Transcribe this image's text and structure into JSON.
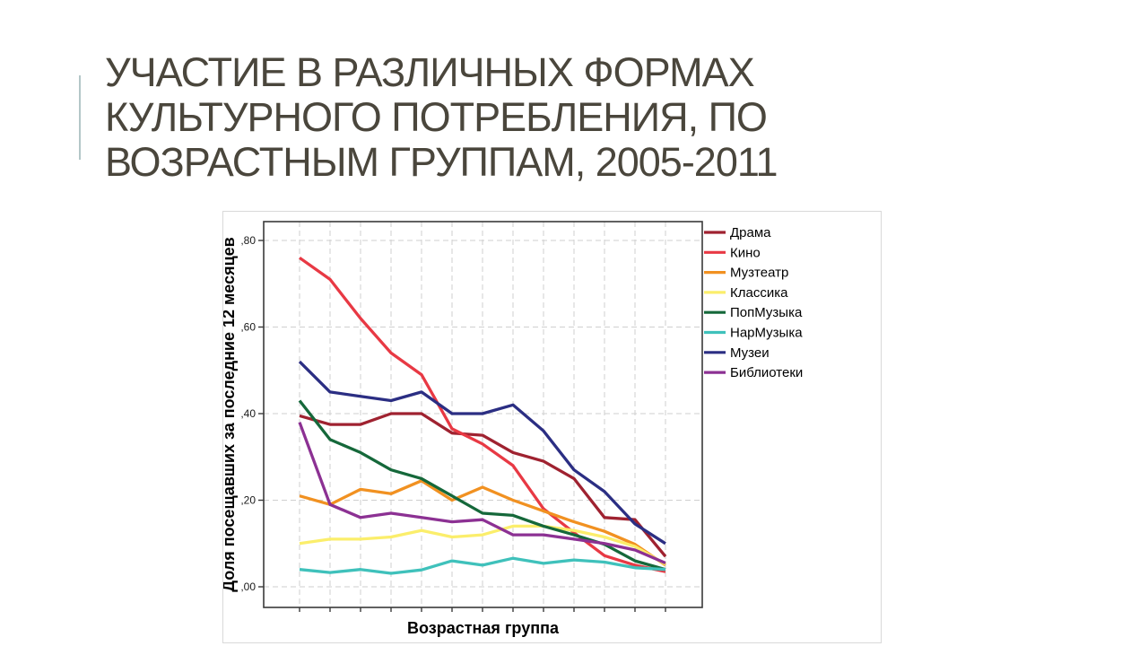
{
  "slide": {
    "title_lines": [
      "УЧАСТИЕ В РАЗЛИЧНЫХ ФОРМАХ",
      "КУЛЬТУРНОГО ПОТРЕБЛЕНИЯ, ПО",
      "ВОЗРАСТНЫМ ГРУППАМ, 2005-2011"
    ],
    "title_color": "#4a463c",
    "accent_color": "#b3c7c8",
    "background_color": "#ffffff"
  },
  "chart_data": {
    "type": "line",
    "title": "",
    "xlabel": "Возрастная группа",
    "ylabel": "Доля посещавших за последние 12 месяцев",
    "x_tick_labels_visible": false,
    "num_age_groups": 13,
    "y_tick_labels": [
      ",80",
      ",60",
      ",40",
      ",20",
      ",00"
    ],
    "y_tick_values": [
      0.8,
      0.6,
      0.4,
      0.2,
      0.0
    ],
    "ylim": [
      -0.048,
      0.844
    ],
    "grid": "dashed",
    "legend_position": "right",
    "frame_color": "#3a3a3a",
    "grid_color": "#cfcfcf",
    "tick_label_color": "#1a1a1a",
    "axis_label_color": "#000000",
    "legend_text_color": "#000000",
    "figure_border_color": "#d9d9d9",
    "series": [
      {
        "name": "Драма",
        "color": "#9f2230",
        "values": [
          0.395,
          0.375,
          0.375,
          0.4,
          0.4,
          0.355,
          0.35,
          0.31,
          0.29,
          0.25,
          0.16,
          0.155,
          0.07
        ]
      },
      {
        "name": "Кино",
        "color": "#e83944",
        "values": [
          0.76,
          0.71,
          0.62,
          0.54,
          0.49,
          0.365,
          0.33,
          0.28,
          0.18,
          0.125,
          0.072,
          0.05,
          0.035
        ]
      },
      {
        "name": "Музтеатр",
        "color": "#f19121",
        "values": [
          0.21,
          0.19,
          0.225,
          0.215,
          0.245,
          0.2,
          0.23,
          0.2,
          0.175,
          0.15,
          0.128,
          0.098,
          0.05
        ]
      },
      {
        "name": "Классика",
        "color": "#fbee6b",
        "values": [
          0.1,
          0.11,
          0.11,
          0.115,
          0.13,
          0.115,
          0.12,
          0.14,
          0.14,
          0.13,
          0.115,
          0.093,
          0.052
        ]
      },
      {
        "name": "ПопМузыка",
        "color": "#15683a",
        "values": [
          0.43,
          0.34,
          0.31,
          0.27,
          0.25,
          0.21,
          0.17,
          0.165,
          0.14,
          0.12,
          0.098,
          0.06,
          0.04
        ]
      },
      {
        "name": "НарМузыка",
        "color": "#3fc1bb",
        "values": [
          0.04,
          0.033,
          0.04,
          0.031,
          0.039,
          0.06,
          0.05,
          0.066,
          0.054,
          0.062,
          0.057,
          0.044,
          0.04
        ]
      },
      {
        "name": "Музеи",
        "color": "#2b2e83",
        "values": [
          0.52,
          0.45,
          0.44,
          0.43,
          0.45,
          0.4,
          0.4,
          0.42,
          0.36,
          0.27,
          0.22,
          0.145,
          0.1
        ]
      },
      {
        "name": "Библиотеки",
        "color": "#8c3193",
        "values": [
          0.38,
          0.19,
          0.16,
          0.17,
          0.16,
          0.15,
          0.155,
          0.12,
          0.12,
          0.11,
          0.1,
          0.085,
          0.055
        ]
      }
    ]
  }
}
